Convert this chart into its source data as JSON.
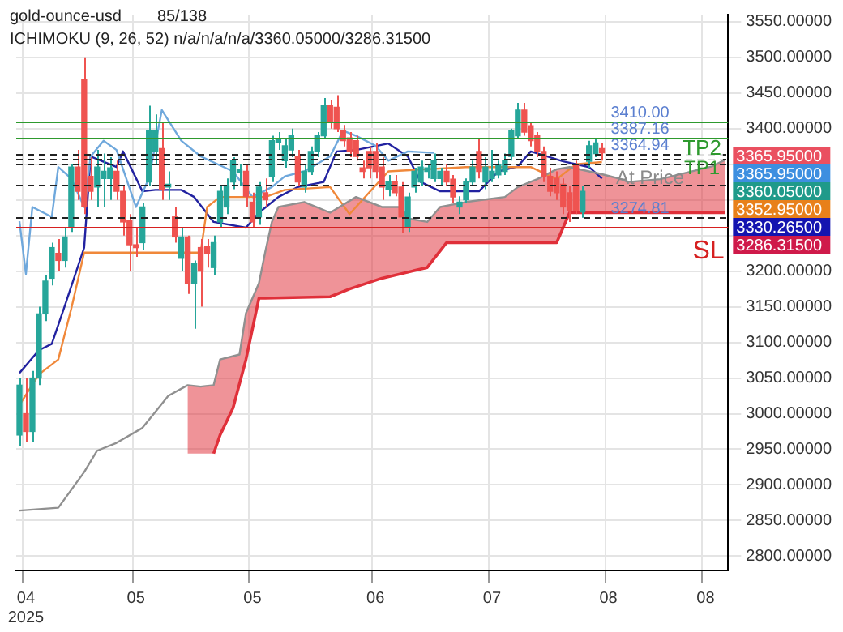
{
  "chart_data": {
    "type": "candlestick",
    "title": "gold-ounce-usd",
    "subtitle": "ICHIMOKU (9, 26, 52)   n/a/n/a/n/a/3360.05000/3286.31500",
    "categories": [
      null,
      "04\n2025",
      null,
      null,
      null,
      null,
      null,
      null,
      null,
      null,
      null,
      null,
      null,
      null,
      null,
      null,
      null,
      null,
      "05",
      null,
      null,
      null,
      null,
      null,
      null,
      null,
      null,
      null,
      null,
      null,
      null,
      null,
      null,
      null,
      null,
      null,
      "05",
      null,
      null,
      null,
      null,
      null,
      null,
      null,
      null,
      null,
      null,
      null,
      null,
      null,
      null,
      null,
      null,
      null,
      null,
      "06",
      null,
      null,
      null,
      null,
      null,
      null,
      null,
      null,
      null,
      null,
      null,
      null,
      null,
      null,
      null,
      null,
      null,
      "07",
      null,
      null,
      null,
      null,
      null,
      null,
      null,
      null,
      null,
      null,
      null,
      null,
      null,
      null,
      null,
      null,
      null,
      "08",
      null,
      null,
      null,
      null,
      null,
      null,
      null,
      null,
      null,
      null,
      null,
      null,
      null,
      null,
      "08",
      null,
      null,
      null
    ],
    "ylim": [
      2780,
      3560
    ],
    "yticks": [
      {
        "value": 3550,
        "label": "3550.00000"
      },
      {
        "value": 3500,
        "label": "3500.00000"
      },
      {
        "value": 3450,
        "label": "3450.00000"
      },
      {
        "value": 3400,
        "label": "3400.00000"
      },
      {
        "value": 3350,
        "label": null
      },
      {
        "value": 3300,
        "label": null
      },
      {
        "value": 3250,
        "label": null
      },
      {
        "value": 3200,
        "label": "3200.00000"
      },
      {
        "value": 3150,
        "label": "3150.00000"
      },
      {
        "value": 3100,
        "label": "3100.00000"
      },
      {
        "value": 3050,
        "label": "3050.00000"
      },
      {
        "value": 3000,
        "label": "3000.00000"
      },
      {
        "value": 2950,
        "label": "2950.00000"
      },
      {
        "value": 2900,
        "label": "2900.00000"
      },
      {
        "value": 2850,
        "label": "2850.00000"
      },
      {
        "value": 2800,
        "label": "2800.00000"
      }
    ],
    "grid": true,
    "legend": false,
    "marker": "none",
    "series": [
      {
        "type": "line",
        "color": "#909090",
        "values": [
          2864,
          null,
          null,
          null,
          null,
          null,
          2868,
          null,
          null,
          null,
          2918,
          null,
          2948,
          null,
          null,
          2959,
          null,
          null,
          null,
          2980,
          null,
          null,
          null,
          3025,
          null,
          null,
          3040,
          null,
          3038,
          null,
          3040,
          3076,
          null,
          null,
          3083,
          3141,
          null,
          3183,
          3228,
          3269,
          3290,
          null,
          null,
          null,
          3297,
          null,
          null,
          null,
          3282,
          null,
          null,
          null,
          3304,
          null,
          null,
          null,
          3290,
          null,
          null,
          3290,
          3274,
          null,
          null,
          3269,
          null,
          3290,
          null,
          null,
          null,
          3297,
          null,
          null,
          null,
          null,
          null,
          3304,
          null,
          3318,
          null,
          null,
          3329,
          null,
          null,
          3343,
          null,
          3346,
          null,
          null,
          3340,
          null,
          3336,
          null,
          null,
          3329,
          3325,
          null,
          null,
          null,
          null,
          3329,
          null,
          null,
          null,
          null,
          null,
          null,
          null,
          3347,
          null,
          3356
        ]
      },
      {
        "type": "line",
        "color": "#e0303a",
        "values": [
          null,
          null,
          null,
          null,
          null,
          null,
          null,
          null,
          null,
          null,
          null,
          null,
          null,
          null,
          null,
          null,
          null,
          null,
          null,
          null,
          null,
          null,
          null,
          null,
          null,
          null,
          null,
          null,
          null,
          null,
          2944,
          2970,
          null,
          3008,
          null,
          3076,
          null,
          3162,
          3162,
          null,
          null,
          null,
          null,
          null,
          null,
          null,
          null,
          null,
          3164,
          null,
          null,
          3175,
          null,
          null,
          null,
          null,
          3190,
          null,
          null,
          null,
          null,
          null,
          null,
          3205,
          null,
          null,
          3240,
          null,
          null,
          null,
          null,
          null,
          null,
          null,
          null,
          null,
          null,
          null,
          null,
          null,
          null,
          null,
          null,
          3240,
          null,
          3282,
          null,
          null,
          null,
          null,
          null,
          null,
          null,
          null,
          null,
          null,
          null,
          null,
          null,
          null,
          null,
          null,
          null,
          null,
          null,
          null,
          null,
          null,
          null,
          3282
        ],
        "lower": [
          null,
          null,
          null,
          null,
          null,
          null,
          null,
          null,
          null,
          null,
          null,
          null,
          null,
          null,
          null,
          null,
          null,
          null,
          null,
          null,
          null,
          null,
          null,
          null,
          null,
          null,
          2944,
          null,
          2944,
          null,
          2944,
          2970,
          null,
          3008,
          3040,
          3076,
          null,
          3162,
          3162,
          3162,
          3162,
          null,
          null,
          null,
          3163,
          null,
          null,
          null,
          3164,
          null,
          null,
          3175,
          3178,
          null,
          null,
          null,
          3190,
          null,
          null,
          3195,
          3197,
          null,
          null,
          3205,
          null,
          3228,
          3240,
          null,
          null,
          3240,
          null,
          null,
          null,
          null,
          null,
          3240,
          null,
          3240,
          null,
          null,
          3240,
          null,
          null,
          3240,
          null,
          3282,
          null,
          null,
          3282,
          null,
          3282,
          null,
          null,
          3282,
          3282,
          null,
          null,
          null,
          null,
          3282,
          null,
          null,
          null,
          null,
          null,
          null,
          null,
          3282,
          null,
          3282
        ],
        "upper": [
          null,
          null,
          null,
          null,
          null,
          null,
          null,
          null,
          null,
          null,
          null,
          null,
          null,
          null,
          null,
          null,
          null,
          null,
          null,
          null,
          null,
          null,
          null,
          null,
          null,
          null,
          3040,
          null,
          3038,
          null,
          3040,
          3076,
          null,
          3080,
          3083,
          3141,
          null,
          3183,
          3228,
          3269,
          3290,
          null,
          null,
          null,
          3297,
          null,
          null,
          null,
          3282,
          null,
          null,
          3300,
          3304,
          null,
          null,
          null,
          3290,
          null,
          null,
          3290,
          3274,
          null,
          null,
          3269,
          null,
          3290,
          3292,
          null,
          null,
          3297,
          null,
          null,
          null,
          null,
          null,
          3304,
          null,
          3318,
          null,
          null,
          3329,
          null,
          null,
          3343,
          null,
          3346,
          null,
          null,
          3340,
          null,
          3336,
          null,
          null,
          3329,
          3325,
          null,
          null,
          null,
          null,
          3329,
          null,
          null,
          null,
          null,
          null,
          null,
          null,
          3347,
          null,
          3356
        ]
      },
      {
        "type": "line",
        "color": "#f0883a",
        "values": [
          3012,
          null,
          null,
          3055,
          null,
          null,
          3076,
          null,
          3147,
          null,
          3226,
          null,
          null,
          null,
          null,
          null,
          null,
          null,
          null,
          null,
          null,
          null,
          null,
          null,
          null,
          null,
          null,
          null,
          3226,
          3290,
          null,
          3304,
          null,
          null,
          null,
          null,
          null,
          null,
          3304,
          null,
          null,
          3314,
          null,
          null,
          null,
          null,
          null,
          null,
          3318,
          null,
          null,
          3280,
          null,
          null,
          null,
          null,
          null,
          3340,
          null,
          null,
          null,
          null,
          null,
          null,
          null,
          null,
          null,
          null,
          null,
          3346,
          null,
          null,
          null,
          null,
          null,
          null,
          null,
          null,
          null,
          3346,
          null,
          null,
          null,
          3329,
          null,
          null,
          3350,
          null,
          null,
          null,
          3353,
          null,
          null,
          null,
          null,
          null,
          null,
          null,
          null,
          null,
          null,
          null,
          null,
          null,
          null,
          null,
          null,
          null,
          null,
          null
        ]
      },
      {
        "type": "line",
        "color": "#6fa8dc",
        "values": [
          3270,
          3196,
          3290,
          null,
          null,
          3276,
          3346,
          null,
          3330,
          null,
          3290,
          3361,
          null,
          3383,
          null,
          3370,
          null,
          null,
          3290,
          null,
          3330,
          null,
          3426,
          null,
          null,
          3383,
          null,
          null,
          3361,
          null,
          null,
          null,
          null,
          3340,
          null,
          null,
          3304,
          null,
          null,
          3318,
          null,
          3333,
          null,
          null,
          3340,
          null,
          null,
          null,
          3361,
          null,
          3397,
          null,
          3390,
          null,
          null,
          3376,
          null,
          3355,
          null,
          null,
          3368,
          null,
          null,
          null,
          3366,
          null,
          null,
          null,
          null,
          null,
          null,
          null,
          null,
          null,
          null,
          null,
          null,
          null,
          null,
          null,
          null,
          null,
          null,
          null,
          null,
          null,
          null,
          null,
          null,
          null,
          null,
          null,
          null,
          null,
          null,
          null,
          null,
          null,
          null,
          null,
          null,
          null,
          null,
          null,
          null,
          null,
          null,
          null,
          null,
          null
        ]
      },
      {
        "type": "line",
        "color": "#2222a0",
        "values": [
          3057,
          null,
          null,
          3089,
          null,
          3098,
          null,
          3151,
          null,
          null,
          3233,
          3361,
          null,
          null,
          null,
          3346,
          3368,
          null,
          null,
          3312,
          null,
          3314,
          null,
          null,
          null,
          3314,
          null,
          3304,
          null,
          null,
          3269,
          null,
          null,
          null,
          null,
          3261,
          null,
          3282,
          null,
          null,
          3304,
          null,
          null,
          3318,
          null,
          null,
          null,
          3325,
          null,
          3368,
          null,
          null,
          3370,
          null,
          null,
          null,
          null,
          3379,
          null,
          null,
          3361,
          null,
          3325,
          null,
          null,
          3312,
          null,
          null,
          null,
          null,
          null,
          3312,
          null,
          null,
          3340,
          null,
          null,
          3347,
          null,
          3368,
          null,
          null,
          null,
          null,
          3354,
          null,
          null,
          null,
          3346,
          null,
          3330,
          null,
          null,
          null,
          null,
          null,
          null,
          null,
          null,
          null,
          null,
          null,
          null,
          null,
          null,
          null,
          null,
          null,
          null,
          null
        ]
      },
      {
        "ohlc": [
          [
            2970,
            3050,
            2955,
            3040
          ],
          [
            3000,
            3050,
            2960,
            2975
          ],
          [
            2975,
            3060,
            2960,
            3050
          ],
          [
            3050,
            3150,
            3040,
            3140
          ],
          [
            3140,
            3195,
            3130,
            3186
          ],
          [
            3190,
            3240,
            3180,
            3233
          ],
          [
            3225,
            3245,
            3200,
            3215
          ],
          [
            3215,
            3260,
            3205,
            3248
          ],
          [
            3261,
            3350,
            3255,
            3346
          ],
          [
            3346,
            3370,
            3300,
            3312
          ],
          [
            3469,
            3500,
            3280,
            3290
          ],
          [
            3333,
            3360,
            3300,
            3312
          ],
          [
            3318,
            3370,
            3290,
            3346
          ],
          [
            3330,
            3365,
            3290,
            3340
          ],
          [
            3330,
            3360,
            3300,
            3345
          ],
          [
            3340,
            3355,
            3300,
            3312
          ],
          [
            3312,
            3320,
            3250,
            3269
          ],
          [
            3271,
            3280,
            3200,
            3237
          ],
          [
            3237,
            3260,
            3220,
            3233
          ],
          [
            3240,
            3295,
            3230,
            3290
          ],
          [
            3325,
            3432,
            3320,
            3397
          ],
          [
            3368,
            3420,
            3350,
            3397
          ],
          [
            3372,
            3408,
            3300,
            3315
          ],
          [
            3318,
            3340,
            3300,
            3322
          ],
          [
            3276,
            3290,
            3240,
            3248
          ],
          [
            3218,
            3260,
            3200,
            3248
          ],
          [
            3248,
            3250,
            3168,
            3183
          ],
          [
            3183,
            3215,
            3119,
            3211
          ],
          [
            3233,
            3245,
            3150,
            3200
          ],
          [
            3235,
            3245,
            3205,
            3225
          ],
          [
            3205,
            3250,
            3195,
            3240
          ],
          [
            3269,
            3320,
            3260,
            3312
          ],
          [
            3290,
            3330,
            3280,
            3320
          ],
          [
            3325,
            3360,
            3315,
            3355
          ],
          [
            3338,
            3350,
            3320,
            3342
          ],
          [
            3340,
            3350,
            3290,
            3305
          ],
          [
            3297,
            3310,
            3260,
            3269
          ],
          [
            3276,
            3325,
            3265,
            3318
          ],
          [
            3310,
            3330,
            3290,
            3300
          ],
          [
            3333,
            3390,
            3325,
            3383
          ],
          [
            3380,
            3395,
            3370,
            3385
          ],
          [
            3355,
            3385,
            3345,
            3376
          ],
          [
            3370,
            3400,
            3360,
            3390
          ],
          [
            3361,
            3370,
            3320,
            3325
          ],
          [
            3318,
            3350,
            3310,
            3340
          ],
          [
            3340,
            3375,
            3335,
            3368
          ],
          [
            3368,
            3395,
            3360,
            3390
          ],
          [
            3390,
            3443,
            3385,
            3432
          ],
          [
            3432,
            3440,
            3400,
            3410
          ],
          [
            3430,
            3447,
            3395,
            3400
          ],
          [
            3397,
            3405,
            3375,
            3383
          ],
          [
            3387,
            3395,
            3360,
            3368
          ],
          [
            3383,
            3390,
            3355,
            3361
          ],
          [
            3345,
            3355,
            3330,
            3340
          ],
          [
            3368,
            3375,
            3330,
            3345
          ],
          [
            3368,
            3380,
            3330,
            3340
          ],
          [
            3346,
            3360,
            3300,
            3318
          ],
          [
            3315,
            3335,
            3305,
            3325
          ],
          [
            3325,
            3335,
            3305,
            3310
          ],
          [
            3318,
            3325,
            3254,
            3276
          ],
          [
            3261,
            3310,
            3255,
            3304
          ],
          [
            3318,
            3345,
            3310,
            3340
          ],
          [
            3325,
            3355,
            3320,
            3346
          ],
          [
            3340,
            3350,
            3330,
            3345
          ],
          [
            3330,
            3365,
            3325,
            3355
          ],
          [
            3330,
            3345,
            3320,
            3340
          ],
          [
            3340,
            3350,
            3320,
            3325
          ],
          [
            3329,
            3335,
            3295,
            3304
          ],
          [
            3290,
            3305,
            3280,
            3297
          ],
          [
            3300,
            3330,
            3295,
            3325
          ],
          [
            3325,
            3355,
            3320,
            3346
          ],
          [
            3368,
            3385,
            3330,
            3340
          ],
          [
            3325,
            3360,
            3315,
            3346
          ],
          [
            3330,
            3370,
            3325,
            3340
          ],
          [
            3335,
            3355,
            3330,
            3350
          ],
          [
            3340,
            3365,
            3335,
            3355
          ],
          [
            3361,
            3400,
            3355,
            3397
          ],
          [
            3390,
            3436,
            3385,
            3426
          ],
          [
            3426,
            3436,
            3390,
            3395
          ],
          [
            3404,
            3410,
            3375,
            3383
          ],
          [
            3390,
            3395,
            3360,
            3368
          ],
          [
            3368,
            3375,
            3325,
            3333
          ],
          [
            3333,
            3345,
            3305,
            3312
          ],
          [
            3330,
            3340,
            3300,
            3310
          ],
          [
            3322,
            3330,
            3280,
            3290
          ],
          [
            3310,
            3320,
            3269,
            3285
          ],
          [
            3350,
            3355,
            3280,
            3285
          ],
          [
            3283,
            3320,
            3275,
            3312
          ],
          [
            3354,
            3383,
            3345,
            3376
          ],
          [
            3365,
            3385,
            3360,
            3380
          ],
          [
            3372,
            3380,
            3355,
            3366
          ],
          null,
          null,
          null,
          null,
          null,
          null,
          null,
          null,
          null,
          null,
          null,
          null,
          null,
          null,
          null,
          null,
          null,
          null,
          null
        ],
        "colors": [
          "#26a69a",
          "#ef5350",
          "#26a69a",
          "#26a69a",
          "#26a69a",
          "#26a69a",
          "#ef5350",
          "#26a69a",
          "#26a69a",
          "#ef5350",
          "#ef5350",
          "#ef5350",
          "#26a69a",
          "#26a69a",
          "#26a69a",
          "#ef5350",
          "#ef5350",
          "#ef5350",
          "#ef5350",
          "#26a69a",
          "#26a69a",
          "#26a69a",
          "#ef5350",
          "#26a69a",
          "#ef5350",
          "#26a69a",
          "#ef5350",
          "#26a69a",
          "#ef5350",
          "#ef5350",
          "#26a69a",
          "#26a69a",
          "#26a69a",
          "#26a69a",
          "#26a69a",
          "#ef5350",
          "#ef5350",
          "#26a69a",
          "#ef5350",
          "#26a69a",
          "#26a69a",
          "#26a69a",
          "#26a69a",
          "#ef5350",
          "#26a69a",
          "#26a69a",
          "#26a69a",
          "#26a69a",
          "#ef5350",
          "#ef5350",
          "#ef5350",
          "#ef5350",
          "#ef5350",
          "#ef5350",
          "#ef5350",
          "#ef5350",
          "#ef5350",
          "#26a69a",
          "#ef5350",
          "#ef5350",
          "#26a69a",
          "#26a69a",
          "#26a69a",
          "#26a69a",
          "#26a69a",
          "#26a69a",
          "#ef5350",
          "#ef5350",
          "#26a69a",
          "#26a69a",
          "#26a69a",
          "#ef5350",
          "#26a69a",
          "#26a69a",
          "#26a69a",
          "#26a69a",
          "#26a69a",
          "#26a69a",
          "#ef5350",
          "#ef5350",
          "#ef5350",
          "#ef5350",
          "#ef5350",
          "#ef5350",
          "#ef5350",
          "#ef5350",
          "#ef5350",
          "#26a69a",
          "#26a69a",
          "#26a69a",
          "#ef5350",
          null,
          null,
          null,
          null,
          null,
          null,
          null,
          null,
          null,
          null,
          null,
          null,
          null,
          null,
          null,
          null,
          null,
          null,
          null
        ]
      }
    ],
    "ref_lines": [
      {
        "axis": "y",
        "value": 3410,
        "label": "3410.00",
        "color": "#2e9a2e",
        "line_style": "solid"
      },
      {
        "axis": "y",
        "value": 3387.16,
        "label": "3387.16",
        "color": "#2e9a2e",
        "line_style": "solid"
      },
      {
        "axis": "y",
        "value": 3364.94,
        "label": "3364.94",
        "color": "#222222",
        "line_style": "dashed"
      },
      {
        "axis": "y",
        "value": 3357,
        "label": null,
        "color": "#222222",
        "line_style": "dashed"
      },
      {
        "axis": "y",
        "value": 3350,
        "label": null,
        "color": "#222222",
        "line_style": "dashed"
      },
      {
        "axis": "y",
        "value": 3322,
        "label": null,
        "color": "#222222",
        "line_style": "dashed"
      },
      {
        "axis": "y",
        "value": 3274.81,
        "label": "3274.81",
        "color": "#222222",
        "line_style": "dashed"
      },
      {
        "axis": "y",
        "value": 3262,
        "label": null,
        "color": "#d62020",
        "line_style": "solid"
      }
    ],
    "annotations": [
      "85/138",
      "TP2",
      "TP1",
      "At Price",
      "SL",
      "3365.95000",
      "3365.95000",
      "3360.05000",
      "3352.95000",
      "3330.26500",
      "3286.31500"
    ]
  }
}
